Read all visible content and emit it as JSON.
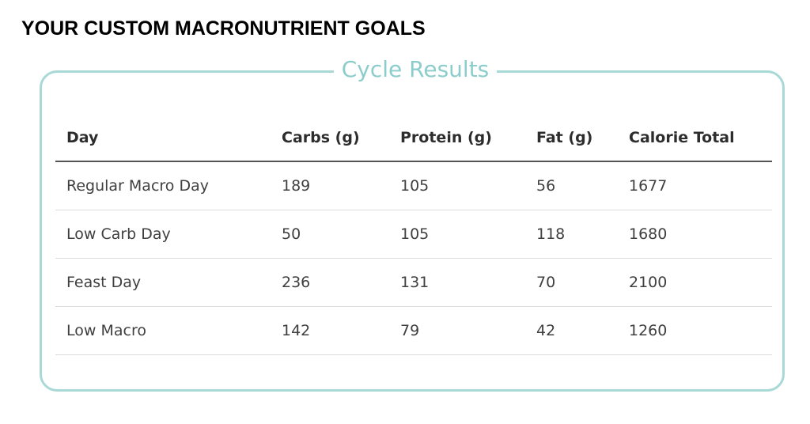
{
  "heading": "YOUR CUSTOM MACRONUTRIENT GOALS",
  "results": {
    "legend": "Cycle Results",
    "accent_color": "#8ccdcb",
    "border_color": "#a9d9d6"
  },
  "table": {
    "headers": [
      "Day",
      "Carbs (g)",
      "Protein (g)",
      "Fat (g)",
      "Calorie Total"
    ],
    "rows": [
      [
        "Regular Macro Day",
        "189",
        "105",
        "56",
        "1677"
      ],
      [
        "Low Carb Day",
        "50",
        "105",
        "118",
        "1680"
      ],
      [
        "Feast Day",
        "236",
        "131",
        "70",
        "2100"
      ],
      [
        "Low Macro",
        "142",
        "79",
        "42",
        "1260"
      ]
    ]
  }
}
